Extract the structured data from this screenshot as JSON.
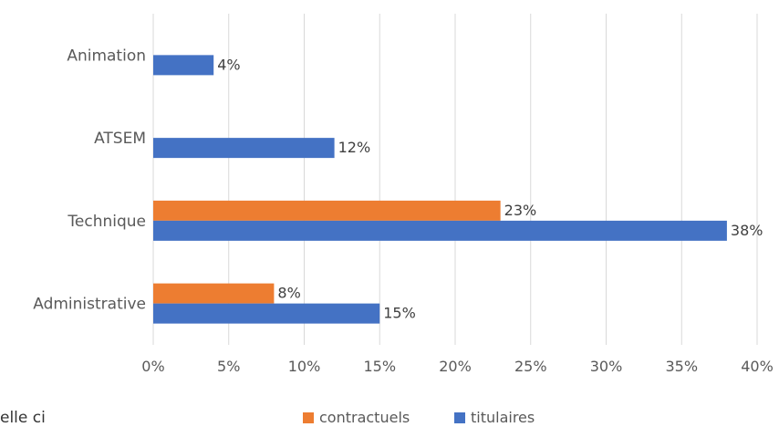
{
  "fragment_text": "elle ci",
  "chart_data": {
    "type": "bar",
    "orientation": "horizontal",
    "categories": [
      "Animation",
      "ATSEM",
      "Technique",
      "Administrative"
    ],
    "series": [
      {
        "name": "contractuels",
        "color": "#ED7D31",
        "values": [
          null,
          null,
          23,
          8
        ],
        "labels": [
          "",
          "",
          "23%",
          "8%"
        ]
      },
      {
        "name": "titulaires",
        "color": "#4472C4",
        "values": [
          4,
          12,
          38,
          15
        ],
        "labels": [
          "4%",
          "12%",
          "38%",
          "15%"
        ]
      }
    ],
    "xlim": [
      0,
      40
    ],
    "x_ticks": [
      "0%",
      "5%",
      "10%",
      "15%",
      "20%",
      "25%",
      "30%",
      "35%",
      "40%"
    ],
    "grid": true,
    "legend_position": "bottom"
  }
}
